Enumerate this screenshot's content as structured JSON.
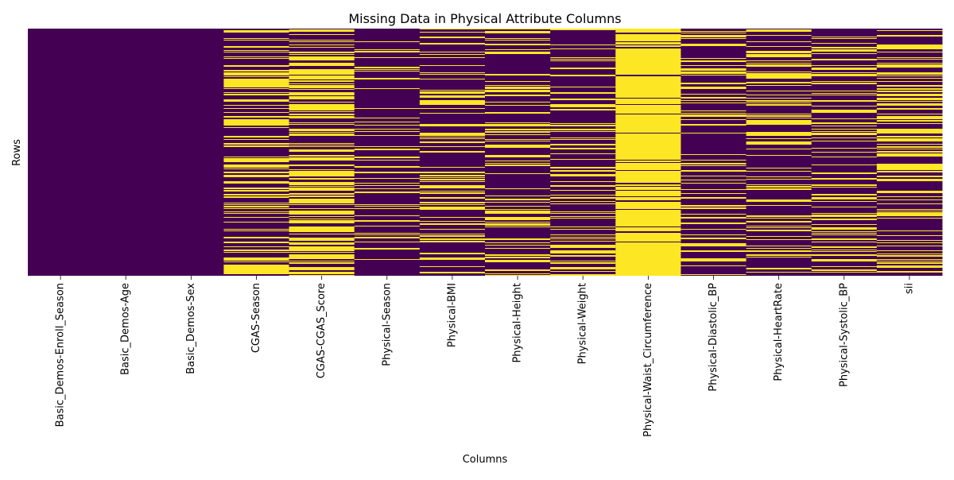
{
  "chart_data": {
    "type": "heatmap",
    "title": "Missing Data in Physical Attribute Columns",
    "xlabel": "Columns",
    "ylabel": "Rows",
    "y_ticks_shown": false,
    "colorbar_shown": false,
    "colors": {
      "present": "#440154",
      "missing": "#fde725"
    },
    "columns": [
      {
        "name": "Basic_Demos-Enroll_Season",
        "missing_fraction": 0.0
      },
      {
        "name": "Basic_Demos-Age",
        "missing_fraction": 0.0
      },
      {
        "name": "Basic_Demos-Sex",
        "missing_fraction": 0.0
      },
      {
        "name": "CGAS-Season",
        "missing_fraction": 0.35
      },
      {
        "name": "CGAS-CGAS_Score",
        "missing_fraction": 0.39
      },
      {
        "name": "Physical-Season",
        "missing_fraction": 0.16
      },
      {
        "name": "Physical-BMI",
        "missing_fraction": 0.23
      },
      {
        "name": "Physical-Height",
        "missing_fraction": 0.23
      },
      {
        "name": "Physical-Weight",
        "missing_fraction": 0.22
      },
      {
        "name": "Physical-Waist_Circumference",
        "missing_fraction": 0.77
      },
      {
        "name": "Physical-Diastolic_BP",
        "missing_fraction": 0.24
      },
      {
        "name": "Physical-HeartRate",
        "missing_fraction": 0.24
      },
      {
        "name": "Physical-Systolic_BP",
        "missing_fraction": 0.24
      },
      {
        "name": "sii",
        "missing_fraction": 0.31
      }
    ]
  }
}
